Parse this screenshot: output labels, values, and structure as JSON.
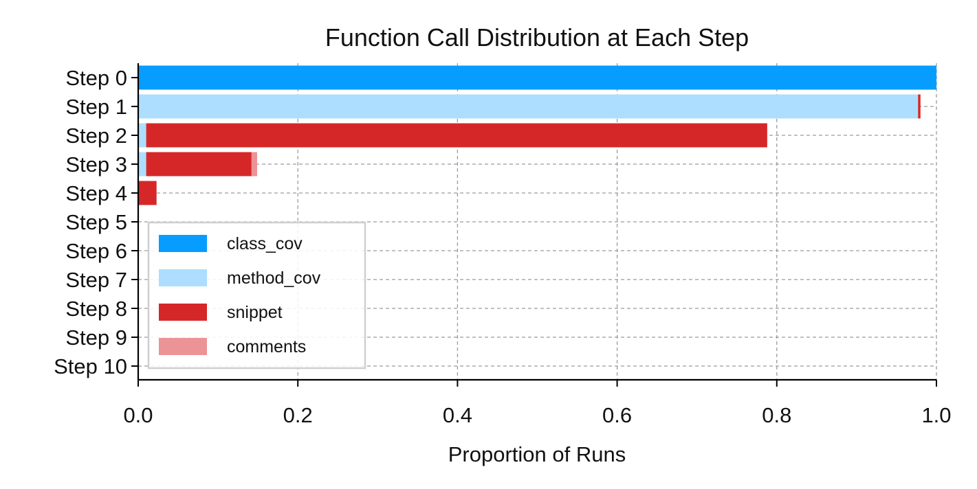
{
  "chart_data": {
    "type": "bar",
    "orientation": "horizontal",
    "stacked": true,
    "title": "Function Call Distribution at Each Step",
    "xlabel": "Proportion of Runs",
    "ylabel": "",
    "xlim": [
      0,
      1.0
    ],
    "x_ticks": [
      "0.0",
      "0.2",
      "0.4",
      "0.6",
      "0.8",
      "1.0"
    ],
    "categories": [
      "Step 0",
      "Step 1",
      "Step 2",
      "Step 3",
      "Step 4",
      "Step 5",
      "Step 6",
      "Step 7",
      "Step 8",
      "Step 9",
      "Step 10"
    ],
    "series": [
      {
        "name": "class_cov",
        "color": "#069dff",
        "values": [
          1.0,
          0,
          0,
          0,
          0,
          0,
          0,
          0,
          0,
          0,
          0
        ]
      },
      {
        "name": "method_cov",
        "color": "#addeff",
        "values": [
          0,
          0.977,
          0.01,
          0.01,
          0,
          0,
          0,
          0,
          0,
          0,
          0
        ]
      },
      {
        "name": "snippet",
        "color": "#d62728",
        "values": [
          0,
          0.003,
          0.778,
          0.132,
          0.023,
          0,
          0,
          0,
          0,
          0,
          0
        ]
      },
      {
        "name": "comments",
        "color": "#ec9396",
        "values": [
          0,
          0,
          0,
          0.007,
          0,
          0,
          0,
          0,
          0,
          0,
          0
        ]
      }
    ],
    "grid": true,
    "legend_position": "lower-left"
  }
}
